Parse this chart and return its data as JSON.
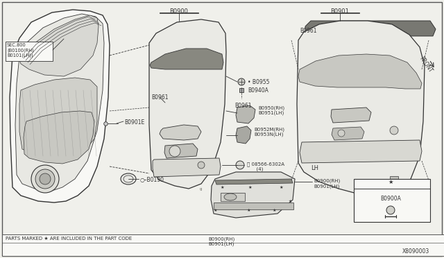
{
  "bg_color": "#f0f0eb",
  "line_color": "#333333",
  "fig_width": 6.4,
  "fig_height": 3.72,
  "dpi": 100,
  "diagram_id": "X8090003",
  "part_note": "PARTS MARKED ★ ARE INCLUDED IN THE PART CODE",
  "part_codes_note": "B0900(RH)\nB0901(LH)",
  "labels": {
    "sec800": "SEC.800\n(B0100(RH)\nB0101(LH))",
    "b0901e": "B0901E",
    "b0900_top": "B0900",
    "b0955": "• B0955",
    "b0940a": "B0940A",
    "b0961_center": "B0961",
    "b0950rh": "B0950(RH)\nB0951(LH)",
    "b0952mrh": "B0952M(RH)\nB0953N(LH)",
    "b09566302a": "Ⓢ 08566-6302A\n      (4)",
    "b0190": "○–B0190",
    "b0900rh": "B0900(RH)\nB0901(LH)",
    "b0900a": "B0900A",
    "b0901": "B0901",
    "b0961_top": "B0961",
    "front": "FRONT",
    "lh": "LH"
  }
}
